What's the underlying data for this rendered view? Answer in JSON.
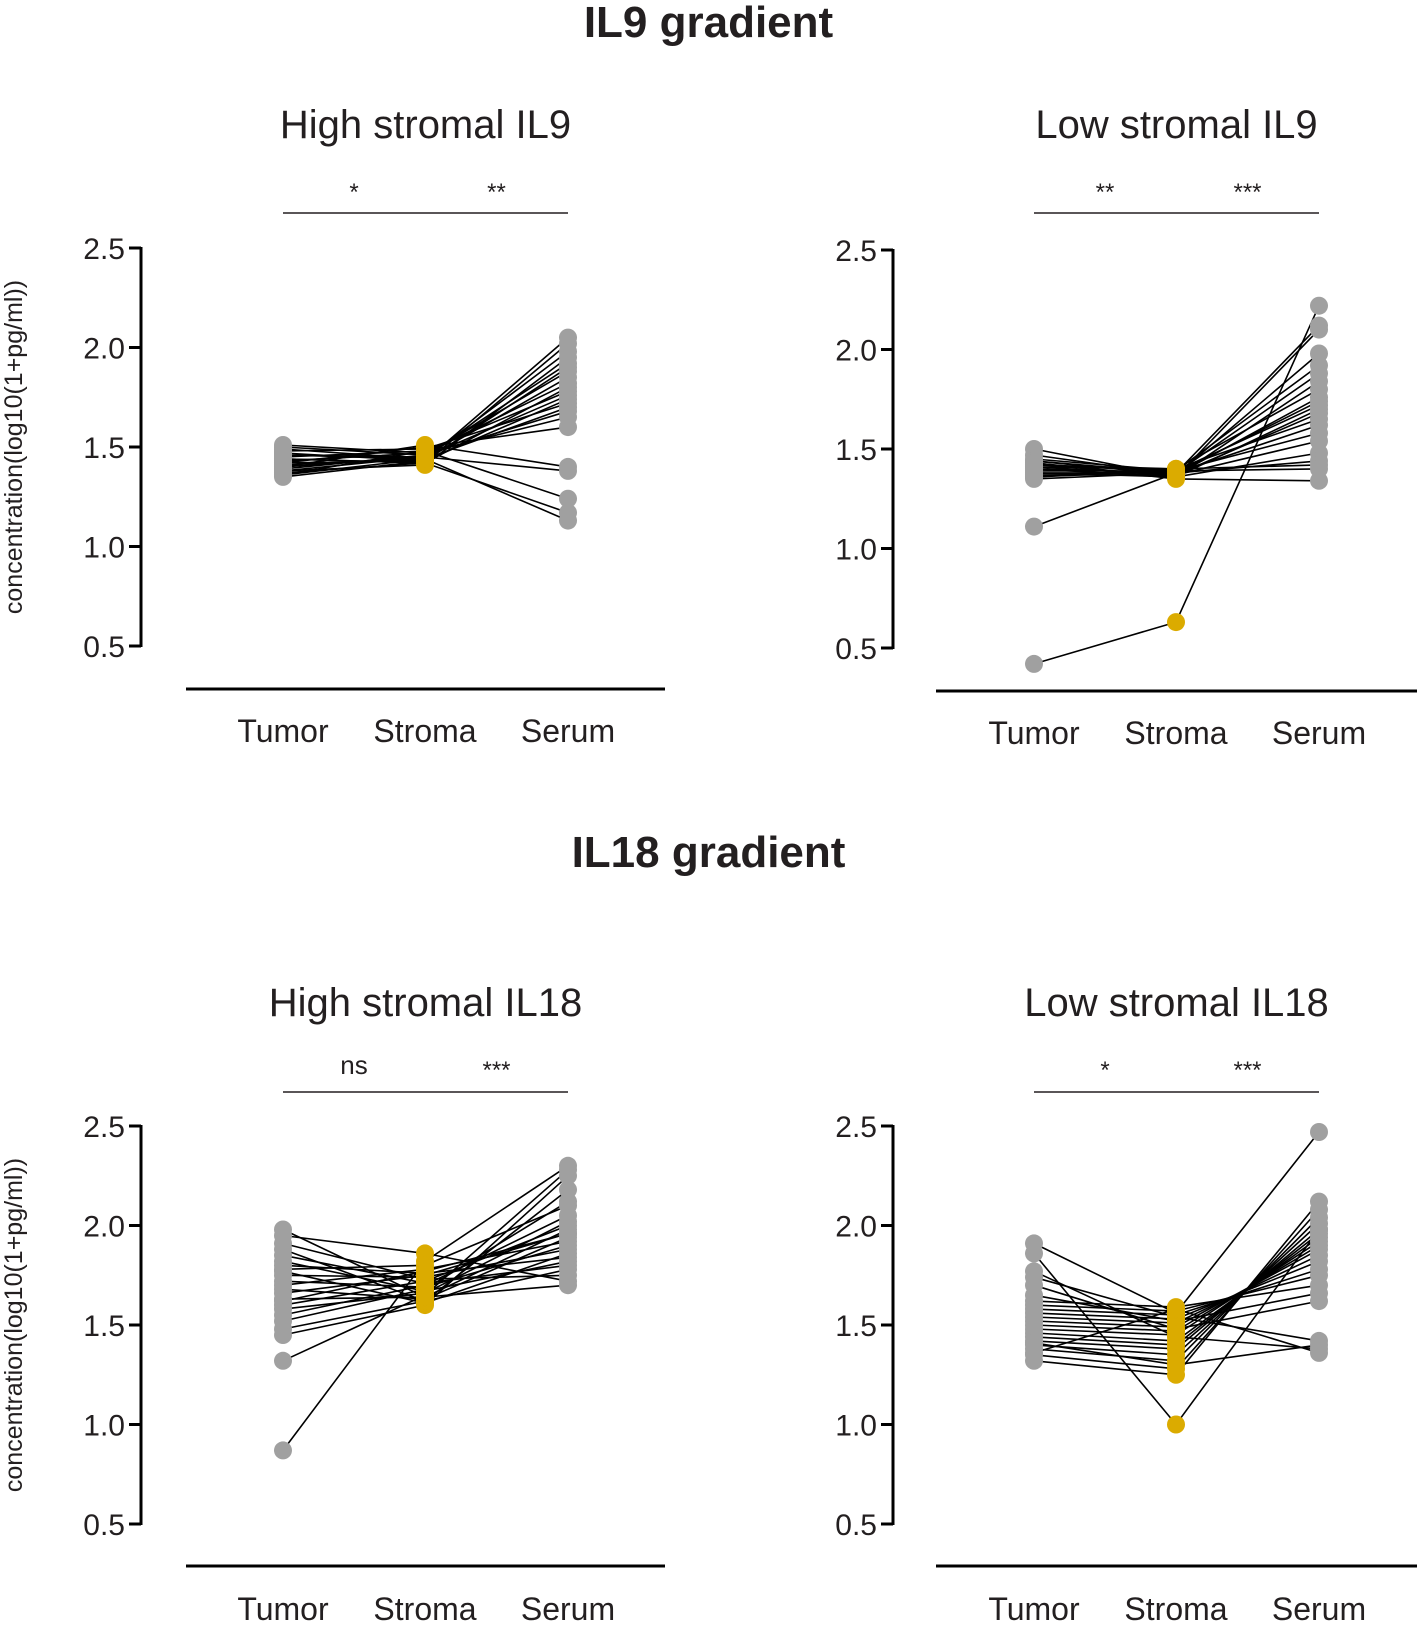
{
  "section_titles": [
    "IL9 gradient",
    "IL18 gradient"
  ],
  "chart_data": [
    {
      "type": "line",
      "title": "High stromal IL9",
      "ylabel": "concentration(log10(1+pg/ml))",
      "categories": [
        "Tumor",
        "Stroma",
        "Serum"
      ],
      "ylim": [
        0.5,
        2.5
      ],
      "yticks": [
        "0.5",
        "1.0",
        "1.5",
        "2.0",
        "2.5"
      ],
      "significance": [
        {
          "from": "Tumor",
          "to": "Stroma",
          "label": "*"
        },
        {
          "from": "Stroma",
          "to": "Serum",
          "label": "**"
        }
      ],
      "point_colors": {
        "Tumor": "#a0a0a0",
        "Stroma": "#dbab00",
        "Serum": "#a0a0a0"
      },
      "series": [
        {
          "values": [
            1.35,
            1.43,
            2.05
          ]
        },
        {
          "values": [
            1.37,
            1.42,
            2.02
          ]
        },
        {
          "values": [
            1.36,
            1.44,
            1.98
          ]
        },
        {
          "values": [
            1.38,
            1.41,
            1.95
          ]
        },
        {
          "values": [
            1.4,
            1.45,
            1.92
          ]
        },
        {
          "values": [
            1.42,
            1.43,
            1.9
          ]
        },
        {
          "values": [
            1.39,
            1.46,
            1.88
          ]
        },
        {
          "values": [
            1.41,
            1.44,
            1.85
          ]
        },
        {
          "values": [
            1.43,
            1.47,
            1.82
          ]
        },
        {
          "values": [
            1.44,
            1.42,
            1.8
          ]
        },
        {
          "values": [
            1.45,
            1.48,
            1.78
          ]
        },
        {
          "values": [
            1.46,
            1.45,
            1.76
          ]
        },
        {
          "values": [
            1.47,
            1.43,
            1.74
          ]
        },
        {
          "values": [
            1.48,
            1.49,
            1.72
          ]
        },
        {
          "values": [
            1.49,
            1.44,
            1.7
          ]
        },
        {
          "values": [
            1.5,
            1.46,
            1.68
          ]
        },
        {
          "values": [
            1.51,
            1.47,
            1.65
          ]
        },
        {
          "values": [
            1.42,
            1.5,
            1.6
          ]
        },
        {
          "values": [
            1.4,
            1.51,
            1.4
          ]
        },
        {
          "values": [
            1.38,
            1.45,
            1.38
          ]
        },
        {
          "values": [
            1.36,
            1.48,
            1.24
          ]
        },
        {
          "values": [
            1.44,
            1.42,
            1.17
          ]
        },
        {
          "values": [
            1.46,
            1.44,
            1.13
          ]
        }
      ]
    },
    {
      "type": "line",
      "title": "Low stromal IL9",
      "ylabel": "",
      "categories": [
        "Tumor",
        "Stroma",
        "Serum"
      ],
      "ylim": [
        0.5,
        2.5
      ],
      "yticks": [
        "0.5",
        "1.0",
        "1.5",
        "2.0",
        "2.5"
      ],
      "significance": [
        {
          "from": "Tumor",
          "to": "Stroma",
          "label": "**"
        },
        {
          "from": "Stroma",
          "to": "Serum",
          "label": "***"
        }
      ],
      "point_colors": {
        "Tumor": "#a0a0a0",
        "Stroma": "#dbab00",
        "Serum": "#a0a0a0"
      },
      "series": [
        {
          "values": [
            0.42,
            0.63,
            2.22
          ]
        },
        {
          "values": [
            1.11,
            1.38,
            2.12
          ]
        },
        {
          "values": [
            1.5,
            1.36,
            2.1
          ]
        },
        {
          "values": [
            1.47,
            1.37,
            1.98
          ]
        },
        {
          "values": [
            1.45,
            1.39,
            1.92
          ]
        },
        {
          "values": [
            1.44,
            1.38,
            1.88
          ]
        },
        {
          "values": [
            1.43,
            1.36,
            1.84
          ]
        },
        {
          "values": [
            1.42,
            1.4,
            1.8
          ]
        },
        {
          "values": [
            1.41,
            1.37,
            1.76
          ]
        },
        {
          "values": [
            1.4,
            1.38,
            1.74
          ]
        },
        {
          "values": [
            1.39,
            1.39,
            1.72
          ]
        },
        {
          "values": [
            1.38,
            1.36,
            1.7
          ]
        },
        {
          "values": [
            1.37,
            1.37,
            1.68
          ]
        },
        {
          "values": [
            1.36,
            1.4,
            1.65
          ]
        },
        {
          "values": [
            1.35,
            1.38,
            1.62
          ]
        },
        {
          "values": [
            1.42,
            1.39,
            1.58
          ]
        },
        {
          "values": [
            1.44,
            1.37,
            1.54
          ]
        },
        {
          "values": [
            1.4,
            1.36,
            1.48
          ]
        },
        {
          "values": [
            1.38,
            1.38,
            1.44
          ]
        },
        {
          "values": [
            1.41,
            1.4,
            1.42
          ]
        },
        {
          "values": [
            1.36,
            1.39,
            1.4
          ]
        },
        {
          "values": [
            1.43,
            1.35,
            1.34
          ]
        }
      ]
    },
    {
      "type": "line",
      "title": "High stromal IL18",
      "ylabel": "concentration(log10(1+pg/ml))",
      "categories": [
        "Tumor",
        "Stroma",
        "Serum"
      ],
      "ylim": [
        0.5,
        2.5
      ],
      "yticks": [
        "0.5",
        "1.0",
        "1.5",
        "2.0",
        "2.5"
      ],
      "significance": [
        {
          "from": "Tumor",
          "to": "Stroma",
          "label": "ns"
        },
        {
          "from": "Stroma",
          "to": "Serum",
          "label": "***"
        }
      ],
      "point_colors": {
        "Tumor": "#a0a0a0",
        "Stroma": "#dbab00",
        "Serum": "#a0a0a0"
      },
      "series": [
        {
          "values": [
            0.87,
            1.82,
            2.3
          ]
        },
        {
          "values": [
            1.32,
            1.65,
            2.28
          ]
        },
        {
          "values": [
            1.45,
            1.6,
            2.25
          ]
        },
        {
          "values": [
            1.48,
            1.62,
            2.18
          ]
        },
        {
          "values": [
            1.52,
            1.68,
            2.12
          ]
        },
        {
          "values": [
            1.55,
            1.7,
            2.05
          ]
        },
        {
          "values": [
            1.58,
            1.66,
            2.02
          ]
        },
        {
          "values": [
            1.6,
            1.72,
            2.0
          ]
        },
        {
          "values": [
            1.63,
            1.64,
            1.98
          ]
        },
        {
          "values": [
            1.66,
            1.75,
            1.96
          ]
        },
        {
          "values": [
            1.68,
            1.63,
            1.94
          ]
        },
        {
          "values": [
            1.7,
            1.78,
            1.92
          ]
        },
        {
          "values": [
            1.72,
            1.69,
            1.9
          ]
        },
        {
          "values": [
            1.75,
            1.74,
            1.88
          ]
        },
        {
          "values": [
            1.77,
            1.61,
            1.86
          ]
        },
        {
          "values": [
            1.8,
            1.76,
            1.84
          ]
        },
        {
          "values": [
            1.82,
            1.67,
            1.82
          ]
        },
        {
          "values": [
            1.85,
            1.71,
            1.8
          ]
        },
        {
          "values": [
            1.88,
            1.62,
            1.78
          ]
        },
        {
          "values": [
            1.91,
            1.73,
            1.75
          ]
        },
        {
          "values": [
            1.95,
            1.86,
            1.72
          ]
        },
        {
          "values": [
            1.98,
            1.64,
            1.7
          ]
        },
        {
          "values": [
            1.78,
            1.8,
            2.1
          ]
        },
        {
          "values": [
            1.62,
            1.77,
            1.96
          ]
        }
      ]
    },
    {
      "type": "line",
      "title": "Low stromal IL18",
      "ylabel": "",
      "categories": [
        "Tumor",
        "Stroma",
        "Serum"
      ],
      "ylim": [
        0.5,
        2.5
      ],
      "yticks": [
        "0.5",
        "1.0",
        "1.5",
        "2.0",
        "2.5"
      ],
      "significance": [
        {
          "from": "Tumor",
          "to": "Stroma",
          "label": "*"
        },
        {
          "from": "Stroma",
          "to": "Serum",
          "label": "***"
        }
      ],
      "point_colors": {
        "Tumor": "#a0a0a0",
        "Stroma": "#dbab00",
        "Serum": "#a0a0a0"
      },
      "series": [
        {
          "values": [
            1.86,
            1.0,
            1.98
          ]
        },
        {
          "values": [
            1.91,
            1.56,
            2.47
          ]
        },
        {
          "values": [
            1.32,
            1.25,
            2.12
          ]
        },
        {
          "values": [
            1.35,
            1.28,
            2.08
          ]
        },
        {
          "values": [
            1.38,
            1.32,
            2.04
          ]
        },
        {
          "values": [
            1.4,
            1.35,
            2.01
          ]
        },
        {
          "values": [
            1.42,
            1.38,
            1.98
          ]
        },
        {
          "values": [
            1.44,
            1.4,
            1.96
          ]
        },
        {
          "values": [
            1.46,
            1.42,
            1.94
          ]
        },
        {
          "values": [
            1.48,
            1.45,
            1.92
          ]
        },
        {
          "values": [
            1.5,
            1.47,
            1.9
          ]
        },
        {
          "values": [
            1.52,
            1.49,
            1.88
          ]
        },
        {
          "values": [
            1.54,
            1.51,
            1.85
          ]
        },
        {
          "values": [
            1.56,
            1.53,
            1.82
          ]
        },
        {
          "values": [
            1.58,
            1.55,
            1.78
          ]
        },
        {
          "values": [
            1.6,
            1.57,
            1.75
          ]
        },
        {
          "values": [
            1.62,
            1.59,
            1.7
          ]
        },
        {
          "values": [
            1.65,
            1.52,
            1.66
          ]
        },
        {
          "values": [
            1.7,
            1.48,
            1.62
          ]
        },
        {
          "values": [
            1.74,
            1.54,
            1.42
          ]
        },
        {
          "values": [
            1.77,
            1.44,
            1.38
          ]
        },
        {
          "values": [
            1.36,
            1.58,
            1.36
          ]
        },
        {
          "values": [
            1.41,
            1.3,
            1.4
          ]
        }
      ]
    }
  ]
}
